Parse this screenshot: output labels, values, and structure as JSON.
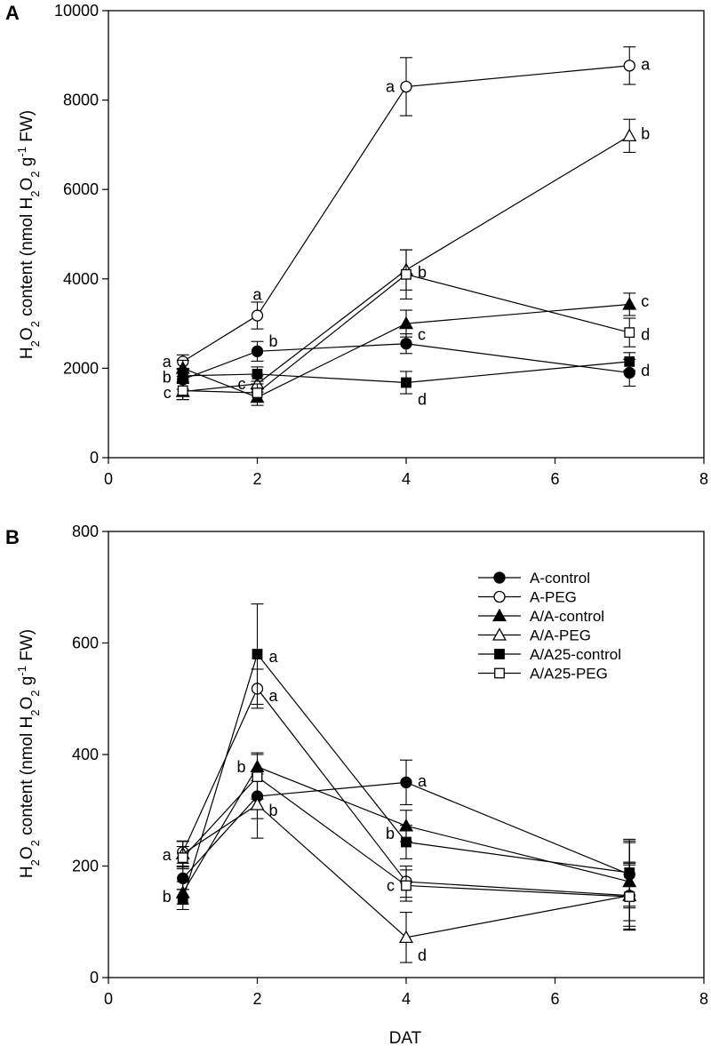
{
  "chart_data": [
    {
      "type": "line",
      "panel": "A",
      "ylabel": {
        "pre": "H",
        "s1": "2",
        "mid1": "O",
        "s2": "2",
        "mid2": " content (nmol H",
        "s3": "2",
        "mid3": "O",
        "s4": "2",
        "mid4": " g",
        "sup": "-1",
        "post": " FW)"
      },
      "xlabel": "",
      "xlim": [
        0,
        8
      ],
      "ylim": [
        0,
        10000
      ],
      "xticks": [
        0,
        2,
        4,
        6,
        8
      ],
      "yticks": [
        0,
        2000,
        4000,
        6000,
        8000,
        10000
      ],
      "x": [
        1,
        2,
        4,
        7
      ],
      "series": [
        {
          "name": "A-control",
          "marker": "circle",
          "filled": true,
          "values": [
            1750,
            2380,
            2550,
            1900
          ],
          "errors": [
            220,
            220,
            220,
            300
          ]
        },
        {
          "name": "A-PEG",
          "marker": "circle",
          "filled": false,
          "values": [
            2150,
            3180,
            8300,
            8770
          ],
          "errors": [
            150,
            300,
            650,
            420
          ]
        },
        {
          "name": "A/A-control",
          "marker": "triangle",
          "filled": true,
          "values": [
            2000,
            1350,
            3000,
            3430
          ],
          "errors": [
            180,
            180,
            300,
            250
          ]
        },
        {
          "name": "A/A-PEG",
          "marker": "triangle",
          "filled": false,
          "values": [
            1480,
            1650,
            4200,
            7200
          ],
          "errors": [
            180,
            180,
            450,
            370
          ]
        },
        {
          "name": "A/A25-control",
          "marker": "square",
          "filled": true,
          "values": [
            1830,
            1870,
            1680,
            2150
          ],
          "errors": [
            150,
            160,
            250,
            200
          ]
        },
        {
          "name": "A/A25-PEG",
          "marker": "square",
          "filled": false,
          "values": [
            1500,
            1450,
            4100,
            2800
          ],
          "errors": [
            200,
            200,
            550,
            320
          ]
        }
      ],
      "annotations": [
        {
          "text": "a",
          "x": 1,
          "y": 2150,
          "side": "left"
        },
        {
          "text": "b",
          "x": 1,
          "y": 1800,
          "side": "left"
        },
        {
          "text": "c",
          "x": 1,
          "y": 1450,
          "side": "left"
        },
        {
          "text": "a",
          "x": 2,
          "y": 3650,
          "side": "center"
        },
        {
          "text": "b",
          "x": 2,
          "y": 2600,
          "side": "right"
        },
        {
          "text": "c",
          "x": 2,
          "y": 1650,
          "side": "left"
        },
        {
          "text": "a",
          "x": 4,
          "y": 8300,
          "side": "left"
        },
        {
          "text": "b",
          "x": 4,
          "y": 4150,
          "side": "right"
        },
        {
          "text": "c",
          "x": 4,
          "y": 2750,
          "side": "right"
        },
        {
          "text": "d",
          "x": 4,
          "y": 1300,
          "side": "right"
        },
        {
          "text": "a",
          "x": 7,
          "y": 8800,
          "side": "right"
        },
        {
          "text": "b",
          "x": 7,
          "y": 7250,
          "side": "right"
        },
        {
          "text": "c",
          "x": 7,
          "y": 3500,
          "side": "right"
        },
        {
          "text": "d",
          "x": 7,
          "y": 2750,
          "side": "right"
        },
        {
          "text": "d",
          "x": 7,
          "y": 1950,
          "side": "right"
        }
      ]
    },
    {
      "type": "line",
      "panel": "B",
      "ylabel": {
        "pre": "H",
        "s1": "2",
        "mid1": "O",
        "s2": "2",
        "mid2": " content (nmol H",
        "s3": "2",
        "mid3": "O",
        "s4": "2",
        "mid4": " g",
        "sup": "-1",
        "post": " FW)"
      },
      "xlabel": "DAT",
      "xlim": [
        0,
        8
      ],
      "ylim": [
        0,
        800
      ],
      "xticks": [
        0,
        2,
        4,
        6,
        8
      ],
      "yticks": [
        0,
        200,
        400,
        600,
        800
      ],
      "x": [
        1,
        2,
        4,
        7
      ],
      "series": [
        {
          "name": "A-control",
          "marker": "circle",
          "filled": true,
          "values": [
            178,
            325,
            350,
            185
          ],
          "errors": [
            20,
            40,
            40,
            60
          ]
        },
        {
          "name": "A-PEG",
          "marker": "circle",
          "filled": false,
          "values": [
            225,
            518,
            172,
            147
          ],
          "errors": [
            20,
            35,
            28,
            60
          ]
        },
        {
          "name": "A/A-control",
          "marker": "triangle",
          "filled": true,
          "values": [
            152,
            378,
            272,
            172
          ],
          "errors": [
            20,
            25,
            28,
            70
          ]
        },
        {
          "name": "A/A-PEG",
          "marker": "triangle",
          "filled": false,
          "values": [
            222,
            310,
            72,
            147
          ],
          "errors": [
            22,
            60,
            45,
            55
          ]
        },
        {
          "name": "A/A25-control",
          "marker": "square",
          "filled": true,
          "values": [
            140,
            580,
            243,
            188
          ],
          "errors": [
            18,
            90,
            30,
            60
          ]
        },
        {
          "name": "A/A25-PEG",
          "marker": "square",
          "filled": false,
          "values": [
            215,
            360,
            165,
            145
          ],
          "errors": [
            20,
            40,
            28,
            60
          ]
        }
      ],
      "annotations": [
        {
          "text": "a",
          "x": 1,
          "y": 220,
          "side": "left"
        },
        {
          "text": "b",
          "x": 1,
          "y": 145,
          "side": "left"
        },
        {
          "text": "a",
          "x": 2,
          "y": 575,
          "side": "right"
        },
        {
          "text": "a",
          "x": 2,
          "y": 505,
          "side": "right"
        },
        {
          "text": "b",
          "x": 2,
          "y": 378,
          "side": "left"
        },
        {
          "text": "b",
          "x": 2,
          "y": 300,
          "side": "right"
        },
        {
          "text": "a",
          "x": 4,
          "y": 352,
          "side": "right"
        },
        {
          "text": "b",
          "x": 4,
          "y": 258,
          "side": "left"
        },
        {
          "text": "c",
          "x": 4,
          "y": 165,
          "side": "left"
        },
        {
          "text": "d",
          "x": 4,
          "y": 40,
          "side": "right"
        }
      ],
      "legend": {
        "placement": "top-right"
      }
    }
  ],
  "panel_labels": [
    "A",
    "B"
  ]
}
